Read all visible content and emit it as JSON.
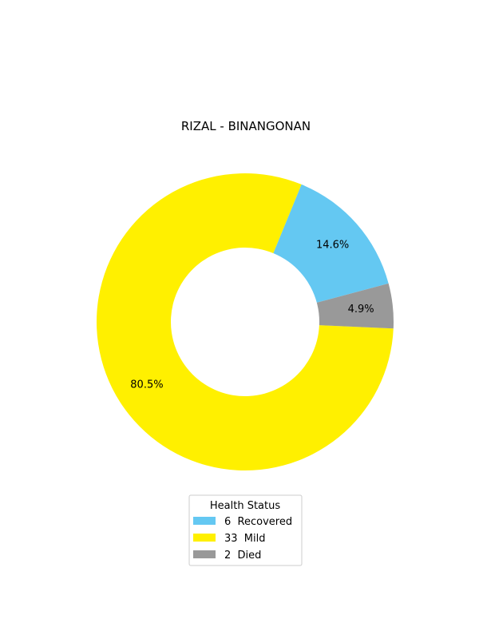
{
  "chart_data": {
    "type": "pie",
    "title": "RIZAL - BINANGONAN",
    "donut": true,
    "slices": [
      {
        "label": "Recovered",
        "value": 6,
        "percent_label": "14.6%",
        "color": "#64c8f2",
        "legend_text": "6  Recovered"
      },
      {
        "label": "Mild",
        "value": 33,
        "percent_label": "80.5%",
        "color": "#fff000",
        "legend_text": "33  Mild"
      },
      {
        "label": "Died",
        "value": 2,
        "percent_label": "4.9%",
        "color": "#999999",
        "legend_text": "2  Died"
      }
    ],
    "legend": {
      "title": "Health Status",
      "placement": "bottom-center"
    }
  }
}
